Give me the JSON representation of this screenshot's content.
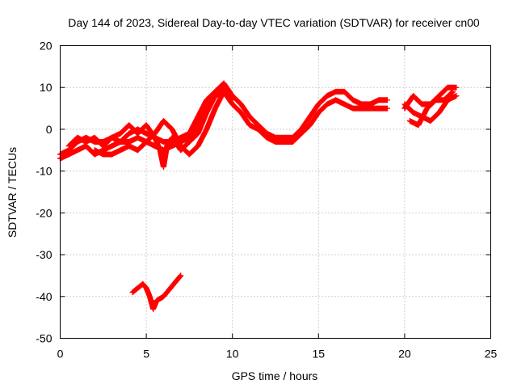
{
  "chart_data": {
    "type": "scatter",
    "title": "Day 144 of 2023, Sidereal Day-to-day VTEC variation (SDTVAR) for receiver cn00",
    "xlabel": "GPS time / hours",
    "ylabel": "SDTVAR / TECUs",
    "xlim": [
      0,
      25
    ],
    "ylim": [
      -50,
      20
    ],
    "xticks": [
      0,
      5,
      10,
      15,
      20,
      25
    ],
    "yticks": [
      20,
      10,
      0,
      -10,
      -20,
      -30,
      -40,
      -50
    ],
    "xtick_labels": [
      "0",
      "5",
      "10",
      "15",
      "20",
      "25"
    ],
    "ytick_labels": [
      "20",
      "10",
      "0",
      "-10",
      "-20",
      "-30",
      "-40",
      "-50"
    ],
    "grid": true,
    "marker": "+",
    "color": "#ff0000",
    "series": [
      {
        "name": "track-1",
        "points": [
          [
            0,
            -6
          ],
          [
            0.5,
            -5
          ],
          [
            1,
            -3
          ],
          [
            1.5,
            -2
          ],
          [
            2,
            -3
          ],
          [
            2.5,
            -3
          ],
          [
            3,
            -2
          ],
          [
            3.5,
            -3
          ],
          [
            4,
            -1
          ],
          [
            4.5,
            0
          ],
          [
            5,
            -1
          ],
          [
            5.5,
            -2
          ],
          [
            6,
            -3
          ],
          [
            6.5,
            -3
          ],
          [
            7,
            -2
          ],
          [
            7.5,
            -1
          ],
          [
            8,
            3
          ],
          [
            8.5,
            7
          ],
          [
            9,
            9
          ],
          [
            9.5,
            11
          ],
          [
            10,
            8
          ],
          [
            10.5,
            6
          ],
          [
            11,
            3
          ],
          [
            11.5,
            1
          ],
          [
            12,
            -1
          ],
          [
            12.5,
            -2
          ],
          [
            13,
            -2
          ],
          [
            13.5,
            -2
          ],
          [
            14,
            0
          ],
          [
            14.5,
            3
          ],
          [
            15,
            6
          ],
          [
            15.5,
            8
          ],
          [
            16,
            9
          ],
          [
            16.5,
            9
          ],
          [
            17,
            7
          ],
          [
            17.5,
            6
          ],
          [
            18,
            6
          ],
          [
            18.5,
            7
          ],
          [
            19,
            7
          ]
        ]
      },
      {
        "name": "track-2",
        "points": [
          [
            0,
            -7
          ],
          [
            0.5,
            -6
          ],
          [
            1,
            -5
          ],
          [
            1.5,
            -4
          ],
          [
            2,
            -6
          ],
          [
            2.5,
            -5
          ],
          [
            3,
            -4
          ],
          [
            3.5,
            -3
          ],
          [
            4,
            -3
          ],
          [
            4.5,
            -2
          ],
          [
            5,
            -3
          ],
          [
            5.5,
            -4
          ],
          [
            6,
            -5
          ],
          [
            6.5,
            -4
          ],
          [
            7,
            -3
          ],
          [
            7.5,
            -2
          ],
          [
            8,
            1
          ],
          [
            8.5,
            5
          ],
          [
            9,
            8
          ],
          [
            9.5,
            9
          ],
          [
            10,
            6
          ],
          [
            10.5,
            4
          ],
          [
            11,
            1
          ],
          [
            11.5,
            0
          ],
          [
            12,
            -2
          ],
          [
            12.5,
            -3
          ],
          [
            13,
            -3
          ],
          [
            13.5,
            -3
          ],
          [
            14,
            -1
          ],
          [
            14.5,
            1
          ],
          [
            15,
            4
          ],
          [
            15.5,
            6
          ],
          [
            16,
            7
          ],
          [
            16.5,
            6
          ],
          [
            17,
            5
          ],
          [
            17.5,
            5
          ],
          [
            18,
            5
          ],
          [
            18.5,
            5
          ],
          [
            19,
            5
          ]
        ]
      },
      {
        "name": "track-3",
        "points": [
          [
            0.5,
            -4
          ],
          [
            1,
            -2
          ],
          [
            1.5,
            -3
          ],
          [
            2,
            -2
          ],
          [
            2.5,
            -4
          ],
          [
            3,
            -2
          ],
          [
            3.5,
            -1
          ],
          [
            4,
            1
          ],
          [
            4.5,
            -1
          ],
          [
            5,
            1
          ],
          [
            5.5,
            -2
          ],
          [
            5.8,
            -5
          ],
          [
            6,
            -9
          ],
          [
            6.2,
            -4
          ],
          [
            6.5,
            -2
          ],
          [
            7,
            -5
          ],
          [
            7.5,
            -3
          ],
          [
            8,
            -1
          ],
          [
            8.5,
            4
          ],
          [
            9,
            8
          ],
          [
            9.5,
            10
          ],
          [
            10,
            7
          ]
        ]
      },
      {
        "name": "track-4",
        "points": [
          [
            2,
            -5
          ],
          [
            2.5,
            -6
          ],
          [
            3,
            -6
          ],
          [
            3.5,
            -5
          ],
          [
            4,
            -4
          ],
          [
            4.5,
            -5
          ],
          [
            5,
            -3
          ],
          [
            5.5,
            -1
          ],
          [
            6,
            2
          ],
          [
            6.5,
            0
          ],
          [
            7,
            -4
          ],
          [
            7.5,
            -6
          ],
          [
            8,
            -4
          ],
          [
            8.5,
            0
          ],
          [
            9,
            5
          ],
          [
            9.5,
            9
          ]
        ]
      },
      {
        "name": "track-5",
        "points": [
          [
            20,
            6
          ],
          [
            20.5,
            4
          ],
          [
            21,
            3
          ],
          [
            21.5,
            2
          ],
          [
            22,
            4
          ],
          [
            22.5,
            7
          ],
          [
            23,
            8
          ]
        ]
      },
      {
        "name": "track-6",
        "points": [
          [
            20,
            5
          ],
          [
            20.5,
            8
          ],
          [
            21,
            6
          ],
          [
            21.5,
            6
          ],
          [
            22,
            8
          ],
          [
            22.5,
            10
          ],
          [
            23,
            10
          ]
        ]
      },
      {
        "name": "track-7",
        "points": [
          [
            20.3,
            2
          ],
          [
            20.8,
            1
          ],
          [
            21.3,
            5
          ],
          [
            21.8,
            7
          ],
          [
            22.3,
            7
          ],
          [
            22.8,
            9
          ]
        ]
      },
      {
        "name": "track-8",
        "points": [
          [
            4.2,
            -39
          ],
          [
            4.5,
            -38
          ],
          [
            4.8,
            -37
          ],
          [
            5,
            -38
          ],
          [
            5.2,
            -40
          ],
          [
            5.4,
            -43
          ],
          [
            5.6,
            -41
          ],
          [
            6,
            -40
          ],
          [
            6.4,
            -38
          ],
          [
            6.8,
            -36
          ],
          [
            7,
            -35
          ]
        ]
      }
    ]
  }
}
